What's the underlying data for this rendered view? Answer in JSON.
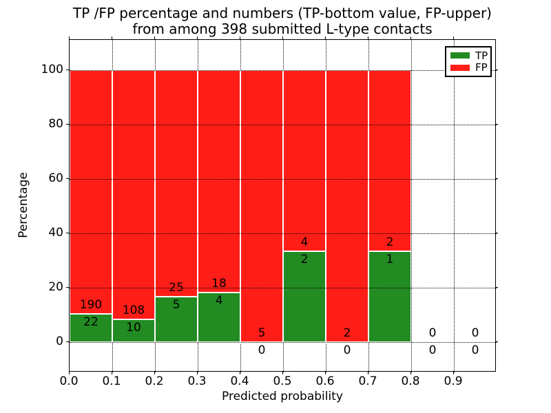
{
  "chart_data": {
    "type": "bar",
    "stacked": true,
    "title": "TP /FP percentage and numbers (TP-bottom value, FP-upper)\nfrom among 398 submitted L-type contacts",
    "title_line1": "TP /FP percentage and numbers (TP-bottom value, FP-upper)",
    "title_line2": "from among 398 submitted L-type contacts",
    "xlabel": "Predicted probability",
    "ylabel": "Percentage",
    "total_contacts": 398,
    "xlim": [
      0.0,
      1.0
    ],
    "ylim": [
      -11,
      111
    ],
    "bin_width": 0.1,
    "grid": true,
    "x_ticks": [
      {
        "value": 0.0,
        "label": "0.0"
      },
      {
        "value": 0.1,
        "label": "0.1"
      },
      {
        "value": 0.2,
        "label": "0.2"
      },
      {
        "value": 0.3,
        "label": "0.3"
      },
      {
        "value": 0.4,
        "label": "0.4"
      },
      {
        "value": 0.5,
        "label": "0.5"
      },
      {
        "value": 0.6,
        "label": "0.6"
      },
      {
        "value": 0.7,
        "label": "0.7"
      },
      {
        "value": 0.8,
        "label": "0.8"
      },
      {
        "value": 0.9,
        "label": "0.9"
      }
    ],
    "y_ticks": [
      {
        "value": 0,
        "label": "0"
      },
      {
        "value": 20,
        "label": "20"
      },
      {
        "value": 40,
        "label": "40"
      },
      {
        "value": 60,
        "label": "60"
      },
      {
        "value": 80,
        "label": "80"
      },
      {
        "value": 100,
        "label": "100"
      }
    ],
    "legend": {
      "position": "upper right",
      "entries": [
        {
          "label": "TP",
          "color": "#228b22"
        },
        {
          "label": "FP",
          "color": "#ff1e17"
        }
      ]
    },
    "categories": [
      "0.0-0.1",
      "0.1-0.2",
      "0.2-0.3",
      "0.3-0.4",
      "0.4-0.5",
      "0.5-0.6",
      "0.6-0.7",
      "0.7-0.8",
      "0.8-0.9",
      "0.9-1.0"
    ],
    "series": [
      {
        "name": "TP",
        "color": "#228b22",
        "counts": [
          22,
          10,
          5,
          4,
          0,
          2,
          0,
          1,
          0,
          0
        ]
      },
      {
        "name": "FP",
        "color": "#ff1e17",
        "counts": [
          190,
          108,
          25,
          18,
          5,
          4,
          2,
          2,
          0,
          0
        ]
      }
    ],
    "tp_percent_by_bin": [
      10.38,
      8.47,
      16.67,
      18.18,
      0.0,
      33.33,
      0.0,
      33.33,
      null,
      null
    ],
    "annotation_rule": "FP count printed above the TP/FP boundary, TP count printed below it; bins with no contacts show 0 above and below the zero line"
  }
}
